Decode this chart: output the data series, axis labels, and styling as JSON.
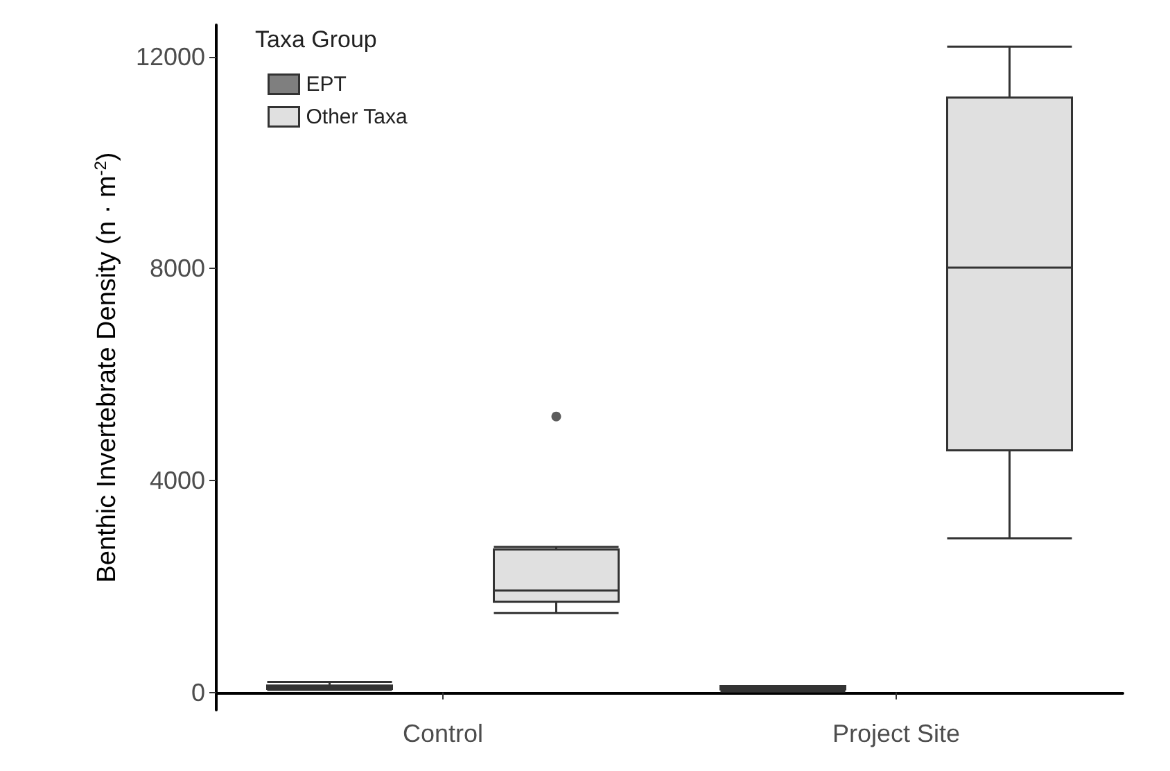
{
  "chart_data": {
    "type": "box",
    "ylabel": "Benthic Invertebrate Density (n · m$^{-2}$)",
    "legend_title": "Taxa Group",
    "legend": "top left",
    "categories": [
      "Control",
      "Project Site"
    ],
    "ylim": [
      -330,
      12600
    ],
    "yticks": [
      0,
      4000,
      8000,
      12000
    ],
    "grid": false,
    "series": [
      {
        "name": "EPT",
        "color": "#7f7f7f",
        "boxes": [
          {
            "low": 50,
            "q1": 70,
            "median": 100,
            "q3": 130,
            "high": 200
          },
          {
            "low": 20,
            "q1": 60,
            "median": 100,
            "q3": 120,
            "high": 120
          }
        ]
      },
      {
        "name": "Other Taxa",
        "color": "#e0e0e0",
        "boxes": [
          {
            "low": 1500,
            "q1": 1710,
            "median": 1925,
            "q3": 2700,
            "high": 2750,
            "outliers": [
              5210
            ]
          },
          {
            "low": 2910,
            "q1": 4570,
            "median": 8020,
            "q3": 11230,
            "high": 12190
          }
        ]
      }
    ]
  }
}
